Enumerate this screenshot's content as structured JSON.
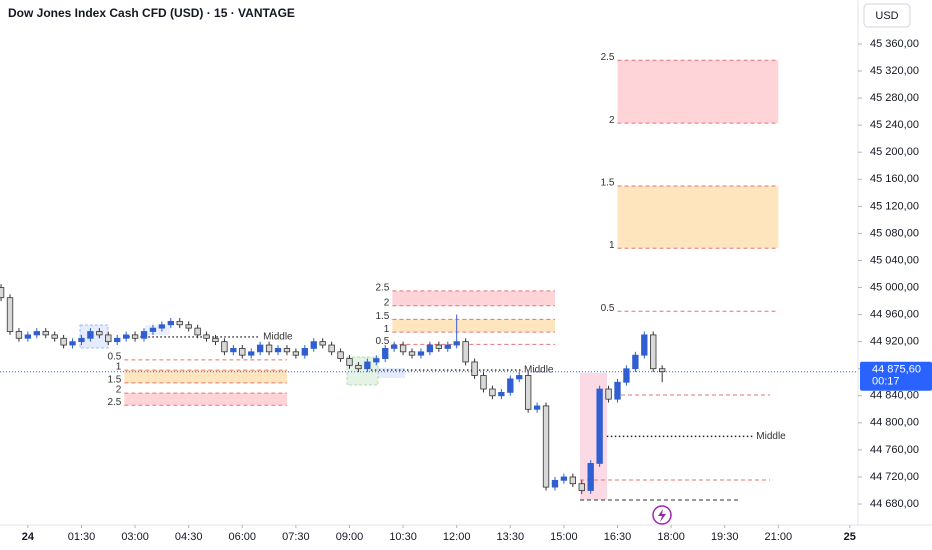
{
  "chart_data": {
    "type": "candlestick",
    "title": "Dow Jones Index Cash CFD (USD) · 15 · VANTAGE",
    "currency": "USD",
    "up_color": "#2f5fd0",
    "down_color": "#d9d9d9",
    "x": [
      -0.75,
      -0.5,
      -0.25,
      0,
      0.25,
      0.5,
      0.75,
      1,
      1.25,
      1.5,
      1.75,
      2,
      2.25,
      2.5,
      2.75,
      3,
      3.25,
      3.5,
      3.75,
      4,
      4.25,
      4.5,
      4.75,
      5,
      5.25,
      5.5,
      5.75,
      6,
      6.25,
      6.5,
      6.75,
      7,
      7.25,
      7.5,
      7.75,
      8,
      8.25,
      8.5,
      8.75,
      9,
      9.25,
      9.5,
      9.75,
      10,
      10.25,
      10.5,
      10.75,
      11,
      11.25,
      11.5,
      11.75,
      12,
      12.25,
      12.5,
      12.75,
      13,
      13.25,
      13.5,
      13.75,
      14,
      14.25,
      14.5,
      14.75,
      15,
      15.25,
      15.5,
      15.75,
      16,
      16.25,
      16.5,
      16.75,
      17,
      17.25,
      17.5,
      17.75
    ],
    "open": [
      45000,
      44985,
      44935,
      44925,
      44930,
      44935,
      44930,
      44925,
      44915,
      44920,
      44925,
      44935,
      44930,
      44920,
      44925,
      44930,
      44925,
      44935,
      44940,
      44945,
      44950,
      44945,
      44940,
      44930,
      44925,
      44920,
      44905,
      44910,
      44900,
      44905,
      44915,
      44905,
      44910,
      44905,
      44900,
      44910,
      44920,
      44915,
      44905,
      44895,
      44885,
      44880,
      44890,
      44895,
      44910,
      44915,
      44905,
      44900,
      44905,
      44915,
      44910,
      44915,
      44920,
      44890,
      44870,
      44850,
      44840,
      44845,
      44865,
      44870,
      44820,
      44825,
      44705,
      44715,
      44720,
      44710,
      44700,
      44740,
      44850,
      44835,
      44860,
      44880,
      44900,
      44930,
      44880
    ],
    "high": [
      45005,
      44990,
      44940,
      44935,
      44940,
      44940,
      44935,
      44930,
      44925,
      44930,
      44940,
      44940,
      44935,
      44930,
      44935,
      44935,
      44940,
      44945,
      44950,
      44955,
      44955,
      44950,
      44945,
      44935,
      44930,
      44925,
      44915,
      44915,
      44910,
      44920,
      44920,
      44915,
      44915,
      44910,
      44915,
      44925,
      44925,
      44920,
      44910,
      44900,
      44890,
      44895,
      44900,
      44915,
      44920,
      44920,
      44910,
      44910,
      44920,
      44920,
      44920,
      44960,
      44925,
      44895,
      44875,
      44855,
      44850,
      44870,
      44875,
      44875,
      44830,
      44830,
      44720,
      44725,
      44725,
      44715,
      44745,
      44855,
      44855,
      44865,
      44885,
      44905,
      44935,
      44935,
      44885
    ],
    "low": [
      44980,
      44930,
      44920,
      44920,
      44925,
      44925,
      44920,
      44910,
      44910,
      44915,
      44920,
      44925,
      44915,
      44915,
      44920,
      44920,
      44920,
      44930,
      44935,
      44940,
      44940,
      44935,
      44925,
      44920,
      44915,
      44900,
      44900,
      44895,
      44895,
      44900,
      44900,
      44900,
      44900,
      44895,
      44895,
      44905,
      44910,
      44900,
      44890,
      44880,
      44875,
      44875,
      44885,
      44890,
      44905,
      44900,
      44895,
      44895,
      44900,
      44905,
      44905,
      44910,
      44885,
      44865,
      44845,
      44835,
      44835,
      44840,
      44860,
      44815,
      44815,
      44700,
      44700,
      44710,
      44705,
      44695,
      44695,
      44735,
      44830,
      44830,
      44855,
      44875,
      44895,
      44875,
      44860
    ],
    "close": [
      44985,
      44935,
      44925,
      44930,
      44935,
      44930,
      44925,
      44915,
      44920,
      44925,
      44935,
      44930,
      44920,
      44925,
      44930,
      44925,
      44935,
      44940,
      44945,
      44950,
      44945,
      44940,
      44930,
      44925,
      44920,
      44905,
      44910,
      44900,
      44905,
      44915,
      44905,
      44910,
      44905,
      44900,
      44910,
      44920,
      44915,
      44905,
      44895,
      44885,
      44880,
      44890,
      44895,
      44910,
      44915,
      44905,
      44900,
      44905,
      44915,
      44910,
      44915,
      44920,
      44890,
      44870,
      44850,
      44840,
      44845,
      44865,
      44870,
      44820,
      44825,
      44705,
      44715,
      44720,
      44710,
      44700,
      44740,
      44850,
      44835,
      44860,
      44880,
      44900,
      44930,
      44880,
      44875.6
    ],
    "xlim": [
      -0.78,
      23.23
    ],
    "ylim": [
      44649,
      45425
    ],
    "xticks": [
      {
        "value": 0,
        "label": "24"
      },
      {
        "value": 1.5,
        "label": "01:30"
      },
      {
        "value": 3,
        "label": "03:00"
      },
      {
        "value": 4.5,
        "label": "04:30"
      },
      {
        "value": 6,
        "label": "06:00"
      },
      {
        "value": 7.5,
        "label": "07:30"
      },
      {
        "value": 9,
        "label": "09:00"
      },
      {
        "value": 10.5,
        "label": "10:30"
      },
      {
        "value": 12,
        "label": "12:00"
      },
      {
        "value": 13.5,
        "label": "13:30"
      },
      {
        "value": 15,
        "label": "15:00"
      },
      {
        "value": 16.5,
        "label": "16:30"
      },
      {
        "value": 18,
        "label": "18:00"
      },
      {
        "value": 19.5,
        "label": "19:30"
      },
      {
        "value": 21,
        "label": "21:00"
      },
      {
        "value": 23,
        "label": "25"
      }
    ],
    "yticks": [
      {
        "value": 44680,
        "label": "44 680,00"
      },
      {
        "value": 44720,
        "label": "44 720,00"
      },
      {
        "value": 44760,
        "label": "44 760,00"
      },
      {
        "value": 44800,
        "label": "44 800,00"
      },
      {
        "value": 44840,
        "label": "44 840,00"
      },
      {
        "value": 44880,
        "label": "44 880,00"
      },
      {
        "value": 44920,
        "label": "44 920,00"
      },
      {
        "value": 44960,
        "label": "44 960,00"
      },
      {
        "value": 45000,
        "label": "45 000,00"
      },
      {
        "value": 45040,
        "label": "45 040,00"
      },
      {
        "value": 45080,
        "label": "45 080,00"
      },
      {
        "value": 45120,
        "label": "45 120,00"
      },
      {
        "value": 45160,
        "label": "45 160,00"
      },
      {
        "value": 45200,
        "label": "45 200,00"
      },
      {
        "value": 45240,
        "label": "45 240,00"
      },
      {
        "value": 45280,
        "label": "45 280,00"
      },
      {
        "value": 45320,
        "label": "45 320,00"
      },
      {
        "value": 45360,
        "label": "45 360,00"
      }
    ],
    "last_price": {
      "value": 44875.6,
      "label": "44 875,60"
    },
    "countdown": "00:17",
    "zones": [
      {
        "x": [
          2.7,
          7.25
        ],
        "middle": {
          "label": "Middle",
          "value": 44927,
          "x": [
            2.7,
            6.5
          ]
        },
        "levels": [
          {
            "label": "0.5",
            "value": 44893
          },
          {
            "label": "1",
            "value": 44878
          },
          {
            "label": "1.5",
            "value": 44859
          },
          {
            "label": "2",
            "value": 44844
          },
          {
            "label": "2.5",
            "value": 44826
          }
        ]
      },
      {
        "x": [
          10.2,
          14.75
        ],
        "middle": {
          "label": "Middle",
          "value": 44878,
          "x": [
            9.6,
            13.8
          ]
        },
        "levels": [
          {
            "label": "0.5",
            "value": 44916
          },
          {
            "label": "1",
            "value": 44934
          },
          {
            "label": "1.5",
            "value": 44953
          },
          {
            "label": "2",
            "value": 44973
          },
          {
            "label": "2.5",
            "value": 44995
          }
        ]
      },
      {
        "x": [
          16.5,
          21
        ],
        "middle": {
          "label": "Middle",
          "value": 44780,
          "x": [
            16.2,
            20.3
          ]
        },
        "levels": [
          {
            "label": "0.5",
            "value": 44965
          },
          {
            "label": "1",
            "value": 45058
          },
          {
            "label": "1.5",
            "value": 45150
          },
          {
            "label": "2",
            "value": 45243
          },
          {
            "label": "2.5",
            "value": 45336
          }
        ]
      }
    ]
  }
}
